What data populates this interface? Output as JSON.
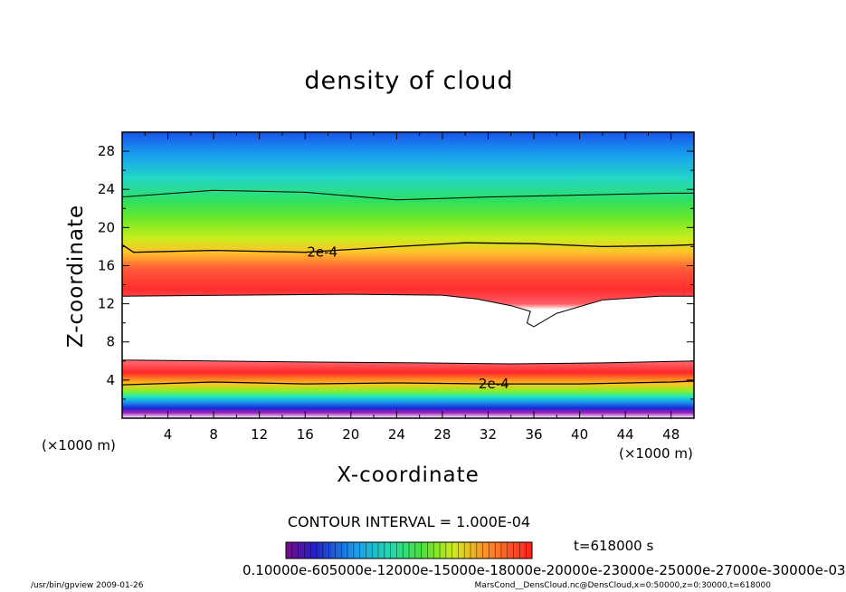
{
  "chart_data": {
    "type": "heatmap",
    "title": "density of cloud",
    "xlabel": "X-coordinate",
    "ylabel": "Z-coordinate",
    "x_unit": "(×1000 m)",
    "xlim": [
      0,
      50
    ],
    "ylim": [
      0,
      30
    ],
    "x_ticks": [
      4,
      8,
      12,
      16,
      20,
      24,
      28,
      32,
      36,
      40,
      44,
      48
    ],
    "y_ticks": [
      4,
      8,
      12,
      16,
      20,
      24,
      28
    ],
    "contour_interval": "CONTOUR INTERVAL = 1.000E-04",
    "contour_labels": [
      {
        "text": "2e-4",
        "x": 17.5,
        "z": 17.4
      },
      {
        "text": "2e-4",
        "x": 32.5,
        "z": 3.6
      }
    ],
    "contour_2e4_upper": {
      "x": [
        0,
        1,
        8,
        16,
        24,
        30,
        36,
        42,
        48,
        50
      ],
      "z": [
        18.2,
        17.4,
        17.6,
        17.4,
        18.0,
        18.4,
        18.3,
        18.0,
        18.1,
        18.2
      ]
    },
    "contour_2e4_lower": {
      "x": [
        0,
        8,
        16,
        24,
        32,
        40,
        48,
        50
      ],
      "z": [
        3.5,
        3.8,
        3.6,
        3.7,
        3.6,
        3.6,
        3.8,
        3.9
      ]
    },
    "contour_outer_upper": {
      "x": [
        0,
        8,
        16,
        24,
        32,
        40,
        48,
        50
      ],
      "z": [
        23.2,
        23.9,
        23.7,
        22.9,
        23.2,
        23.4,
        23.6,
        23.6
      ]
    },
    "cloud_free_region": {
      "x": [
        0,
        10,
        20,
        28,
        31,
        34,
        35.7,
        35.4,
        36,
        38,
        42,
        47,
        50,
        50,
        42,
        34,
        26,
        16,
        8,
        0
      ],
      "z": [
        12.8,
        12.9,
        13.0,
        12.9,
        12.5,
        11.8,
        11.2,
        10.0,
        9.6,
        11.0,
        12.4,
        12.8,
        12.8,
        6.0,
        5.8,
        5.7,
        5.8,
        5.9,
        6.0,
        6.1
      ]
    },
    "colorbar_range": [
      0.0001,
      0.0003
    ],
    "colorbar_labels": "0.10000e-605000e-12000e-15000e-18000e-20000e-23000e-25000e-27000e-30000e-03",
    "time": "t=618000 s",
    "colors": {
      "background": "#ffffff",
      "contour": "#000000",
      "low": "#2a2ad8",
      "high": "#ff3030"
    }
  },
  "footer": {
    "left": "/usr/bin/gpview   2009-01-26",
    "right": "MarsCond__DensCloud.nc@DensCloud,x=0:50000,z=0:30000,t=618000"
  }
}
